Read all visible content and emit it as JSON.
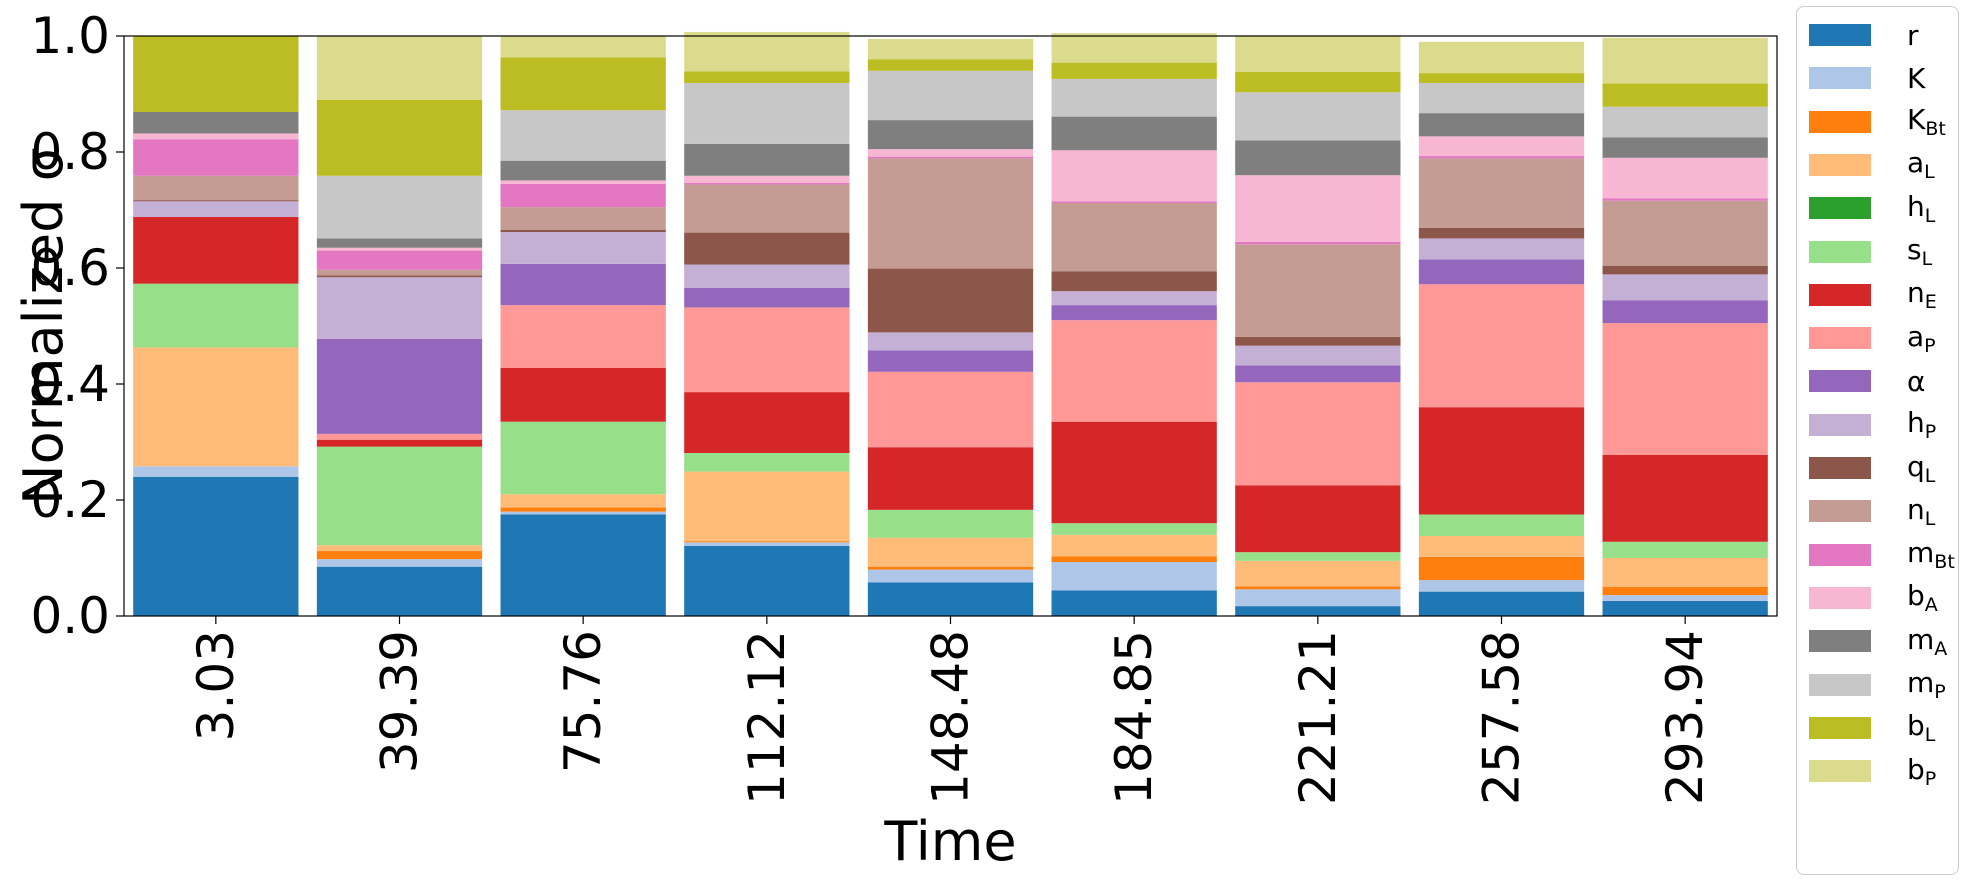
{
  "chart_data": {
    "type": "bar",
    "stacked": true,
    "xlabel": "Time",
    "ylabel": "Normalized σ",
    "ylim": [
      0,
      1
    ],
    "yticks": [
      "0.0",
      "0.2",
      "0.4",
      "0.6",
      "0.8",
      "1.0"
    ],
    "categories": [
      "3.03",
      "39.39",
      "75.76",
      "112.12",
      "148.48",
      "184.85",
      "221.21",
      "257.58",
      "293.94"
    ],
    "legend_position": "outside-right",
    "series": [
      {
        "name": "r",
        "label_main": "r",
        "label_sub": "",
        "color": "#1f77b4",
        "values": [
          0.24,
          0.085,
          0.175,
          0.121,
          0.058,
          0.044,
          0.017,
          0.042,
          0.026
        ]
      },
      {
        "name": "K",
        "label_main": "K",
        "label_sub": "",
        "color": "#aec7e8",
        "values": [
          0.018,
          0.013,
          0.005,
          0.006,
          0.022,
          0.049,
          0.029,
          0.02,
          0.01
        ]
      },
      {
        "name": "KBt",
        "label_main": "K",
        "label_sub": "Bt",
        "color": "#ff7f0e",
        "values": [
          0.0,
          0.014,
          0.007,
          0.002,
          0.005,
          0.01,
          0.005,
          0.04,
          0.014
        ]
      },
      {
        "name": "aL",
        "label_main": "a",
        "label_sub": "L",
        "color": "#ffbb78",
        "values": [
          0.205,
          0.01,
          0.023,
          0.12,
          0.05,
          0.037,
          0.044,
          0.036,
          0.05
        ]
      },
      {
        "name": "hL",
        "label_main": "h",
        "label_sub": "L",
        "color": "#2ca02c",
        "values": [
          0.0,
          0.0,
          0.0,
          0.0,
          0.0,
          0.0,
          0.0,
          0.0,
          0.0
        ]
      },
      {
        "name": "sL",
        "label_main": "s",
        "label_sub": "L",
        "color": "#98df8a",
        "values": [
          0.11,
          0.17,
          0.125,
          0.032,
          0.048,
          0.02,
          0.015,
          0.037,
          0.028
        ]
      },
      {
        "name": "nE",
        "label_main": "n",
        "label_sub": "E",
        "color": "#d62728",
        "values": [
          0.115,
          0.012,
          0.093,
          0.105,
          0.108,
          0.175,
          0.115,
          0.185,
          0.15
        ]
      },
      {
        "name": "aP",
        "label_main": "a",
        "label_sub": "P",
        "color": "#ff9896",
        "values": [
          0.0,
          0.01,
          0.108,
          0.146,
          0.13,
          0.175,
          0.178,
          0.212,
          0.227
        ]
      },
      {
        "name": "α",
        "label_main": "α",
        "label_sub": "",
        "color": "#9467bd",
        "values": [
          0.0,
          0.164,
          0.071,
          0.034,
          0.037,
          0.026,
          0.029,
          0.043,
          0.039
        ]
      },
      {
        "name": "hP",
        "label_main": "h",
        "label_sub": "P",
        "color": "#c5b0d5",
        "values": [
          0.027,
          0.106,
          0.055,
          0.04,
          0.031,
          0.024,
          0.034,
          0.036,
          0.045
        ]
      },
      {
        "name": "qL",
        "label_main": "q",
        "label_sub": "L",
        "color": "#8c564b",
        "values": [
          0.002,
          0.003,
          0.004,
          0.055,
          0.11,
          0.034,
          0.015,
          0.018,
          0.015
        ]
      },
      {
        "name": "nL",
        "label_main": "n",
        "label_sub": "L",
        "color": "#c49c94",
        "values": [
          0.042,
          0.01,
          0.039,
          0.083,
          0.19,
          0.118,
          0.16,
          0.12,
          0.112
        ]
      },
      {
        "name": "mBt",
        "label_main": "m",
        "label_sub": "Bt",
        "color": "#e377c2",
        "values": [
          0.063,
          0.033,
          0.04,
          0.003,
          0.003,
          0.003,
          0.004,
          0.004,
          0.004
        ]
      },
      {
        "name": "bA",
        "label_main": "b",
        "label_sub": "A",
        "color": "#f7b6d2",
        "values": [
          0.01,
          0.005,
          0.006,
          0.012,
          0.013,
          0.088,
          0.115,
          0.034,
          0.07
        ]
      },
      {
        "name": "mA",
        "label_main": "m",
        "label_sub": "A",
        "color": "#7f7f7f",
        "values": [
          0.037,
          0.016,
          0.034,
          0.055,
          0.05,
          0.058,
          0.06,
          0.04,
          0.035
        ]
      },
      {
        "name": "mP",
        "label_main": "m",
        "label_sub": "P",
        "color": "#c7c7c7",
        "values": [
          0.0,
          0.108,
          0.087,
          0.105,
          0.085,
          0.065,
          0.083,
          0.052,
          0.053
        ]
      },
      {
        "name": "bL",
        "label_main": "b",
        "label_sub": "L",
        "color": "#bcbd22",
        "values": [
          0.131,
          0.131,
          0.091,
          0.02,
          0.02,
          0.028,
          0.035,
          0.017,
          0.04
        ]
      },
      {
        "name": "bP",
        "label_main": "b",
        "label_sub": "P",
        "color": "#dbdb8d",
        "values": [
          0.0,
          0.11,
          0.037,
          0.068,
          0.035,
          0.051,
          0.063,
          0.054,
          0.079
        ]
      }
    ]
  }
}
